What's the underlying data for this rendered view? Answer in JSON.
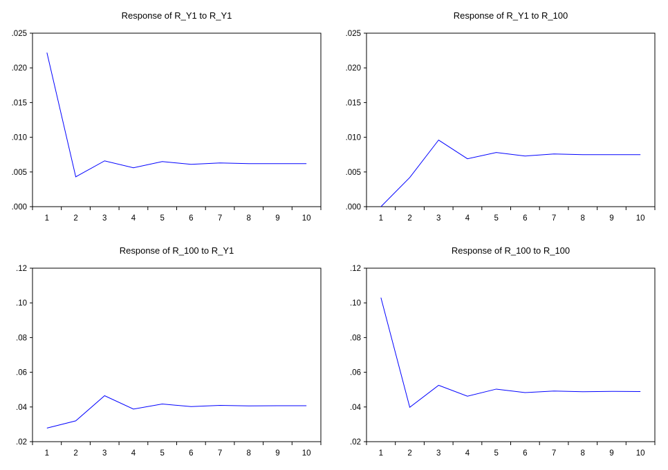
{
  "chart_data": [
    {
      "type": "line",
      "title": "Response of R_Y1 to R_Y1",
      "x": [
        1,
        2,
        3,
        4,
        5,
        6,
        7,
        8,
        9,
        10
      ],
      "x_tick_labels": [
        "1",
        "2",
        "3",
        "4",
        "5",
        "6",
        "7",
        "8",
        "9",
        "10"
      ],
      "y_tick_labels": [
        ".000",
        ".005",
        ".010",
        ".015",
        ".020",
        ".025"
      ],
      "y_ticks": [
        0,
        0.005,
        0.01,
        0.015,
        0.02,
        0.025
      ],
      "ylim": [
        0,
        0.025
      ],
      "series": [
        {
          "values": [
            0.0222,
            0.0043,
            0.0066,
            0.0056,
            0.0065,
            0.0061,
            0.0063,
            0.0062,
            0.0062,
            0.0062
          ]
        }
      ],
      "color": "#0000ff"
    },
    {
      "type": "line",
      "title": "Response of R_Y1 to R_100",
      "x": [
        1,
        2,
        3,
        4,
        5,
        6,
        7,
        8,
        9,
        10
      ],
      "x_tick_labels": [
        "1",
        "2",
        "3",
        "4",
        "5",
        "6",
        "7",
        "8",
        "9",
        "10"
      ],
      "y_tick_labels": [
        ".000",
        ".005",
        ".010",
        ".015",
        ".020",
        ".025"
      ],
      "y_ticks": [
        0,
        0.005,
        0.01,
        0.015,
        0.02,
        0.025
      ],
      "ylim": [
        0,
        0.025
      ],
      "series": [
        {
          "values": [
            0.0,
            0.0042,
            0.0096,
            0.0069,
            0.0078,
            0.0073,
            0.0076,
            0.0075,
            0.0075,
            0.0075
          ]
        }
      ],
      "color": "#0000ff"
    },
    {
      "type": "line",
      "title": "Response of R_100 to R_Y1",
      "x": [
        1,
        2,
        3,
        4,
        5,
        6,
        7,
        8,
        9,
        10
      ],
      "x_tick_labels": [
        "1",
        "2",
        "3",
        "4",
        "5",
        "6",
        "7",
        "8",
        "9",
        "10"
      ],
      "y_tick_labels": [
        ".02",
        ".04",
        ".06",
        ".08",
        ".10",
        ".12"
      ],
      "y_ticks": [
        0.02,
        0.04,
        0.06,
        0.08,
        0.1,
        0.12
      ],
      "ylim": [
        0.02,
        0.12
      ],
      "series": [
        {
          "values": [
            0.0278,
            0.032,
            0.0465,
            0.0388,
            0.0417,
            0.0402,
            0.0409,
            0.0406,
            0.0407,
            0.0407
          ]
        }
      ],
      "color": "#0000ff"
    },
    {
      "type": "line",
      "title": "Response of R_100 to R_100",
      "x": [
        1,
        2,
        3,
        4,
        5,
        6,
        7,
        8,
        9,
        10
      ],
      "x_tick_labels": [
        "1",
        "2",
        "3",
        "4",
        "5",
        "6",
        "7",
        "8",
        "9",
        "10"
      ],
      "y_tick_labels": [
        ".02",
        ".04",
        ".06",
        ".08",
        ".10",
        ".12"
      ],
      "y_ticks": [
        0.02,
        0.04,
        0.06,
        0.08,
        0.1,
        0.12
      ],
      "ylim": [
        0.02,
        0.12
      ],
      "series": [
        {
          "values": [
            0.103,
            0.0398,
            0.0525,
            0.0462,
            0.0503,
            0.0483,
            0.0492,
            0.0488,
            0.049,
            0.0489
          ]
        }
      ],
      "color": "#0000ff"
    }
  ]
}
